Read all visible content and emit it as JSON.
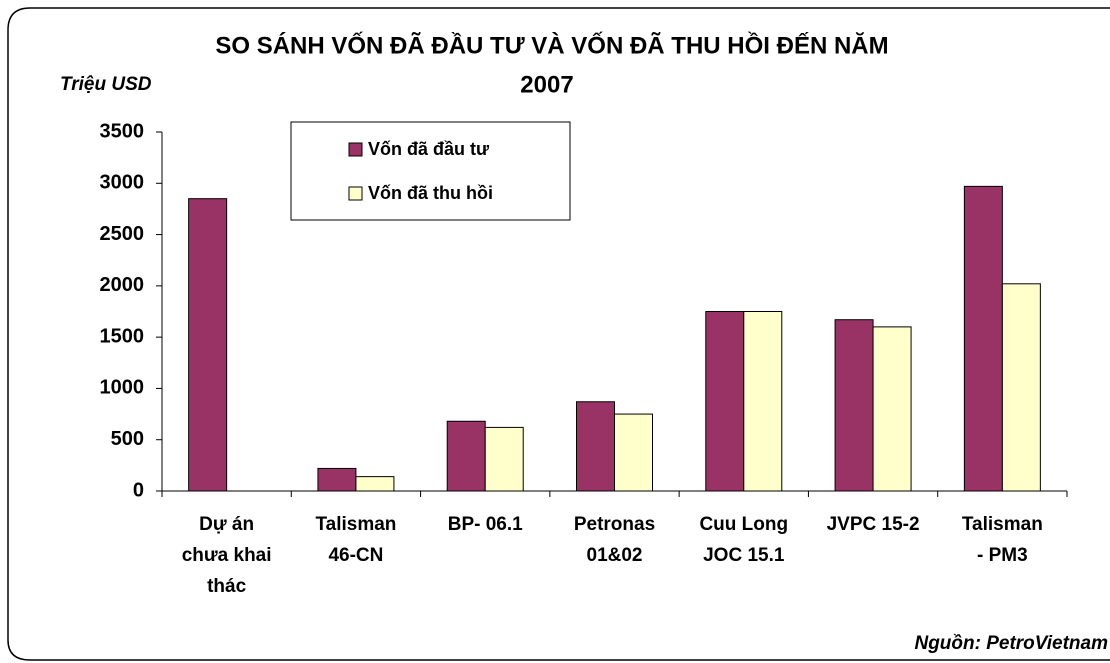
{
  "chart_data": {
    "type": "bar",
    "title": [
      "SO SÁNH VỐN ĐÃ ĐẦU TƯ VÀ VỐN ĐÃ THU HỒI ĐẾN NĂM",
      "2007"
    ],
    "y_unit": "Triệu USD",
    "source": "Nguồn:  PetroVietnam",
    "categories": [
      [
        "Dự án",
        "chưa khai",
        "thác"
      ],
      [
        "Talisman",
        "46-CN"
      ],
      [
        "BP- 06.1"
      ],
      [
        "Petronas",
        "01&02"
      ],
      [
        "Cuu Long",
        "JOC 15.1"
      ],
      [
        "JVPC 15-2"
      ],
      [
        "Talisman",
        "- PM3"
      ]
    ],
    "series": [
      {
        "name": "Vốn đã đầu tư",
        "color": "#993366",
        "values": [
          2850,
          220,
          680,
          870,
          1750,
          1670,
          2970
        ]
      },
      {
        "name": "Vốn đã thu hồi",
        "color": "#ffffcc",
        "values": [
          0,
          140,
          620,
          750,
          1750,
          1600,
          2020
        ]
      }
    ],
    "ylim": [
      0,
      3500
    ],
    "yticks": [
      0,
      500,
      1000,
      1500,
      2000,
      2500,
      3000,
      3500
    ],
    "grid": false,
    "legend": "top-left"
  }
}
